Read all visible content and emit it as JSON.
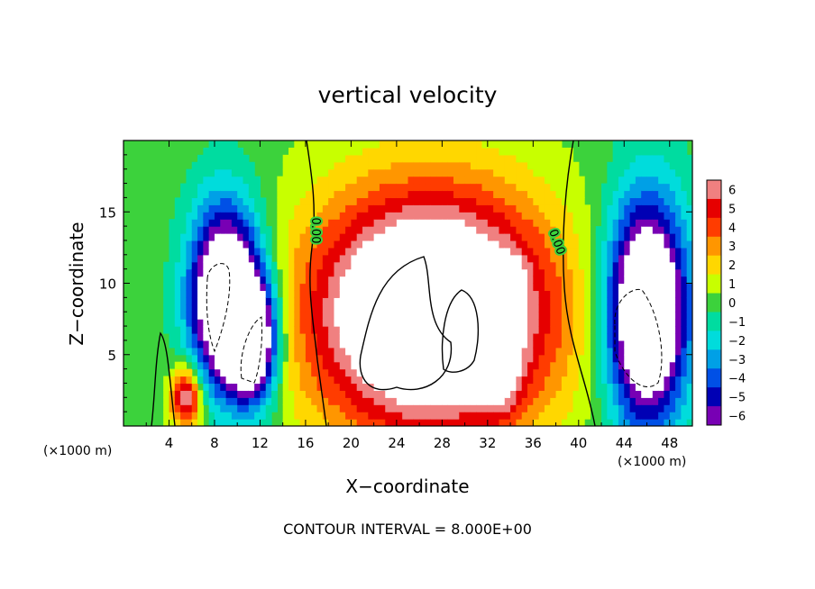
{
  "chart_data": {
    "type": "heatmap",
    "title": "vertical velocity",
    "xlabel": "X−coordinate",
    "ylabel": "Z−coordinate",
    "x_unit_left": "(×1000 m)",
    "x_unit_right": "(×1000 m)",
    "xlim": [
      0,
      50
    ],
    "ylim": [
      0,
      20
    ],
    "x_ticks": [
      4,
      8,
      12,
      16,
      20,
      24,
      28,
      32,
      36,
      40,
      44,
      48
    ],
    "x_tick_labels": [
      "4",
      "8",
      "12",
      "16",
      "20",
      "24",
      "28",
      "32",
      "36",
      "40",
      "44",
      "48"
    ],
    "y_ticks": [
      5,
      10,
      15
    ],
    "y_tick_labels": [
      "5",
      "10",
      "15"
    ],
    "contour_interval_label": "CONTOUR INTERVAL = 8.000E+00",
    "contour_labels": [
      "0.00",
      "0.00"
    ],
    "colorbar": {
      "levels": [
        6,
        5,
        4,
        3,
        2,
        1,
        0,
        -1,
        -2,
        -3,
        -4,
        -5,
        -6
      ],
      "labels": [
        "6",
        "5",
        "4",
        "3",
        "2",
        "1",
        "0",
        "−1",
        "−2",
        "−3",
        "−4",
        "−5",
        "−6"
      ]
    },
    "features": [
      {
        "sign": "up",
        "x": 27,
        "z": 8,
        "sx": 7.5,
        "sz": 6,
        "amp": 12
      },
      {
        "sign": "up",
        "x": 33.5,
        "z": 10.2,
        "sx": 1.0,
        "sz": 1.0,
        "amp": 6
      },
      {
        "sign": "up",
        "x": 33,
        "z": 4,
        "sx": 1.2,
        "sz": 2.0,
        "amp": 4
      },
      {
        "sign": "up",
        "x": 5.5,
        "z": 2,
        "sx": 1.0,
        "sz": 1.5,
        "amp": 7
      },
      {
        "sign": "down",
        "x": 9,
        "z": 9,
        "sx": 2.2,
        "sz": 4.5,
        "amp": 12
      },
      {
        "sign": "down",
        "x": 11.5,
        "z": 6,
        "sx": 1.5,
        "sz": 3.0,
        "amp": 9
      },
      {
        "sign": "down",
        "x": 46,
        "z": 8,
        "sx": 2.5,
        "sz": 5.5,
        "amp": 12
      }
    ]
  },
  "colors": {
    "scale": [
      "#f08080",
      "#e60000",
      "#ff3c00",
      "#ff9600",
      "#ffd700",
      "#c8ff00",
      "#3cd23c",
      "#00dca0",
      "#00dcdc",
      "#00a0e6",
      "#0050e6",
      "#0000b4",
      "#7800b4"
    ]
  }
}
